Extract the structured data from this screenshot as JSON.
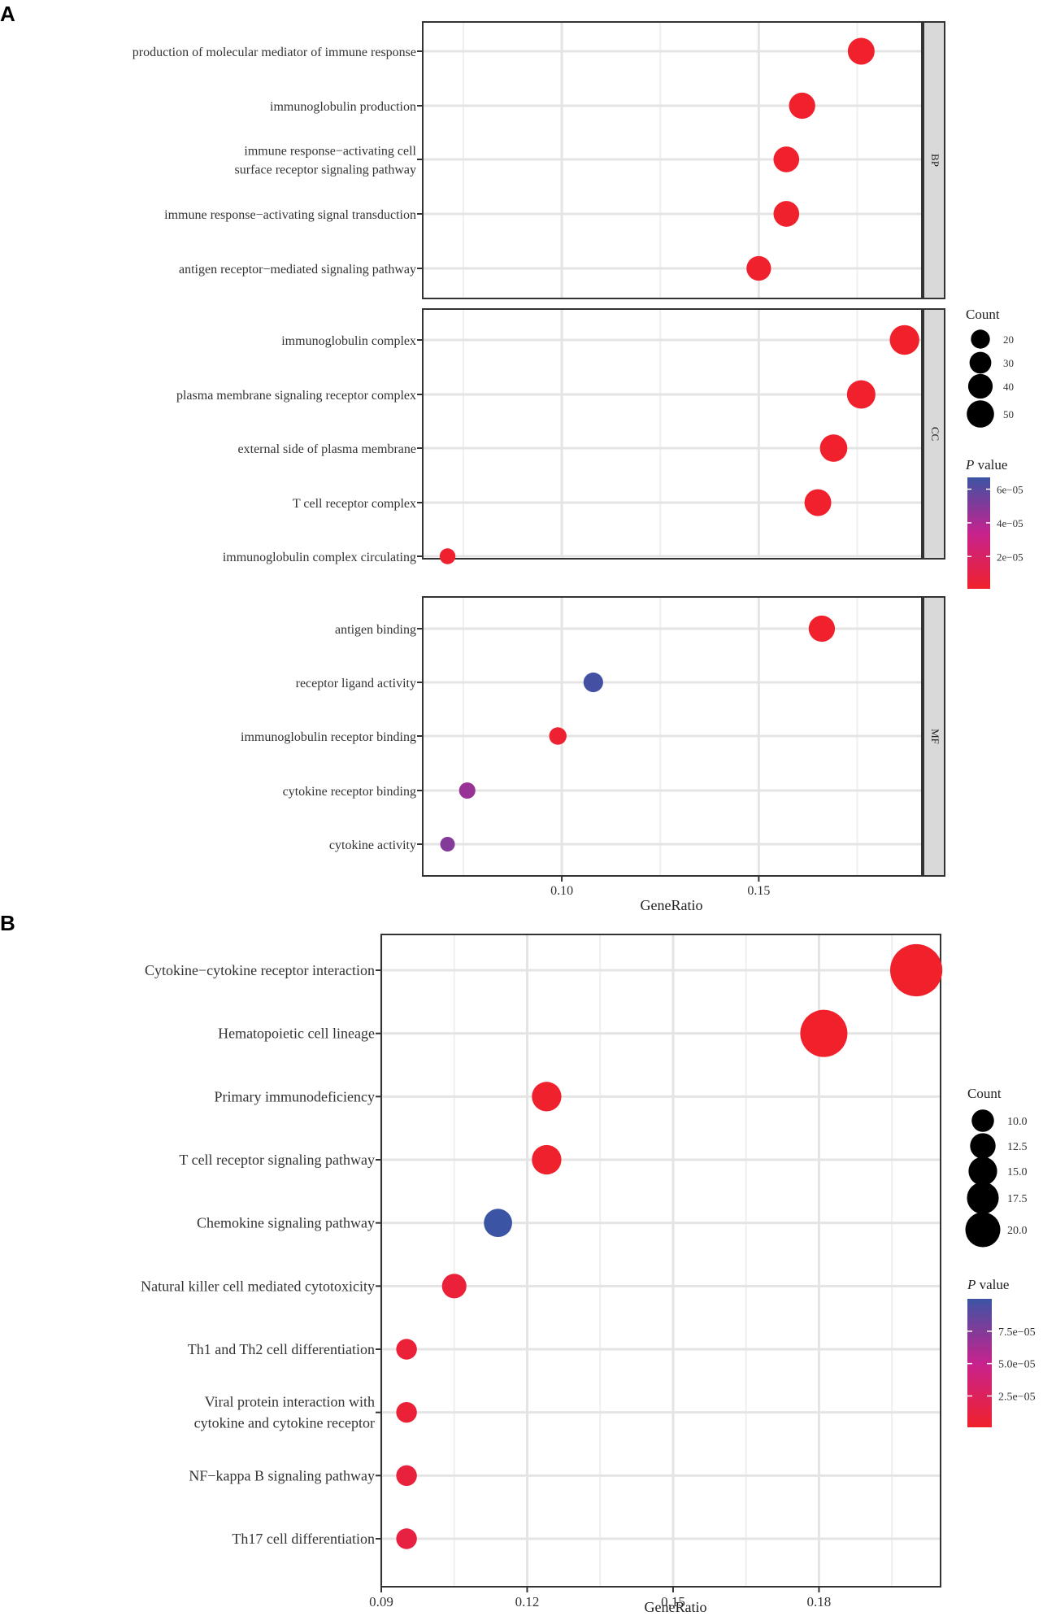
{
  "chart_data": [
    {
      "panel_label": "A",
      "type": "scatter",
      "subtype": "dot-plot-faceted",
      "xlabel": "GeneRatio",
      "x_ticks": [
        "0.10",
        "0.15"
      ],
      "x_tick_values": [
        0.1,
        0.15
      ],
      "xlim": [
        0.0647,
        0.1914
      ],
      "facets": [
        {
          "name": "BP",
          "terms": [
            {
              "label": [
                "production of molecular mediator of immune response"
              ],
              "gene_ratio": 0.176,
              "count": 35,
              "p_value": 1e-06
            },
            {
              "label": [
                "immunoglobulin production"
              ],
              "gene_ratio": 0.161,
              "count": 34,
              "p_value": 1.2e-06
            },
            {
              "label": [
                "immune response−activating cell",
                "surface receptor signaling pathway"
              ],
              "gene_ratio": 0.157,
              "count": 33,
              "p_value": 1.1e-06
            },
            {
              "label": [
                "immune response−activating signal transduction"
              ],
              "gene_ratio": 0.157,
              "count": 33,
              "p_value": 1.3e-06
            },
            {
              "label": [
                "antigen receptor−mediated signaling pathway"
              ],
              "gene_ratio": 0.15,
              "count": 31,
              "p_value": 1.5e-06
            }
          ]
        },
        {
          "name": "CC",
          "terms": [
            {
              "label": [
                "immunoglobulin complex"
              ],
              "gene_ratio": 0.187,
              "count": 40,
              "p_value": 8e-07
            },
            {
              "label": [
                "plasma membrane signaling receptor complex"
              ],
              "gene_ratio": 0.176,
              "count": 38,
              "p_value": 1e-06
            },
            {
              "label": [
                "external side of plasma membrane"
              ],
              "gene_ratio": 0.169,
              "count": 36,
              "p_value": 1.2e-06
            },
            {
              "label": [
                "T cell receptor complex"
              ],
              "gene_ratio": 0.165,
              "count": 35,
              "p_value": 1.1e-06
            },
            {
              "label": [
                "immunoglobulin complex circulating"
              ],
              "gene_ratio": 0.071,
              "count": 15,
              "p_value": 2e-06
            }
          ]
        },
        {
          "name": "MF",
          "terms": [
            {
              "label": [
                "antigen binding"
              ],
              "gene_ratio": 0.166,
              "count": 34,
              "p_value": 1.2e-06
            },
            {
              "label": [
                "receptor ligand activity"
              ],
              "gene_ratio": 0.108,
              "count": 22,
              "p_value": 6.5e-05
            },
            {
              "label": [
                "immunoglobulin receptor binding"
              ],
              "gene_ratio": 0.099,
              "count": 18,
              "p_value": 3e-06
            },
            {
              "label": [
                "cytokine receptor binding"
              ],
              "gene_ratio": 0.076,
              "count": 16,
              "p_value": 4.5e-05
            },
            {
              "label": [
                "cytokine activity"
              ],
              "gene_ratio": 0.071,
              "count": 13,
              "p_value": 5e-05
            }
          ]
        }
      ],
      "size_legend": {
        "title": "Count",
        "breaks": [
          "20",
          "30",
          "40",
          "50"
        ],
        "break_values": [
          20,
          30,
          40,
          50
        ]
      },
      "color_legend": {
        "title_italic": "P",
        "title_rest": " value",
        "breaks": [
          "6e−05",
          "4e−05",
          "2e−05"
        ],
        "break_values": [
          6e-05,
          4e-05,
          2e-05
        ],
        "range": [
          8e-07,
          6.7e-05
        ],
        "low_color": "#f0212b",
        "mid_color": "#c7228e",
        "high_color": "#3c54a4"
      }
    },
    {
      "panel_label": "B",
      "type": "scatter",
      "subtype": "dot-plot",
      "xlabel": "GeneRatio",
      "x_ticks": [
        "0.09",
        "0.12",
        "0.15",
        "0.18"
      ],
      "x_tick_values": [
        0.09,
        0.12,
        0.15,
        0.18
      ],
      "xlim": [
        0.09,
        0.205
      ],
      "terms": [
        {
          "label": [
            "Cytokine−cytokine receptor interaction"
          ],
          "gene_ratio": 0.2,
          "count": 22,
          "p_value": 8e-07
        },
        {
          "label": [
            "Hematopoietic cell lineage"
          ],
          "gene_ratio": 0.181,
          "count": 20,
          "p_value": 9e-07
        },
        {
          "label": [
            "Primary immunodeficiency"
          ],
          "gene_ratio": 0.124,
          "count": 13,
          "p_value": 1.5e-06
        },
        {
          "label": [
            "T cell receptor signaling pathway"
          ],
          "gene_ratio": 0.124,
          "count": 13,
          "p_value": 2e-06
        },
        {
          "label": [
            "Chemokine signaling pathway"
          ],
          "gene_ratio": 0.114,
          "count": 12.5,
          "p_value": 0.0001
        },
        {
          "label": [
            "Natural killer cell mediated cytotoxicity"
          ],
          "gene_ratio": 0.105,
          "count": 11,
          "p_value": 8e-06
        },
        {
          "label": [
            "Th1 and Th2 cell differentiation"
          ],
          "gene_ratio": 0.0952,
          "count": 9.5,
          "p_value": 7e-06
        },
        {
          "label": [
            "Viral protein interaction with",
            "cytokine and cytokine receptor"
          ],
          "gene_ratio": 0.0952,
          "count": 9.5,
          "p_value": 7e-06
        },
        {
          "label": [
            "NF−kappa B signaling pathway"
          ],
          "gene_ratio": 0.0952,
          "count": 9.5,
          "p_value": 1e-05
        },
        {
          "label": [
            "Th17 cell differentiation"
          ],
          "gene_ratio": 0.0952,
          "count": 9.5,
          "p_value": 1.2e-05
        }
      ],
      "size_legend": {
        "title": "Count",
        "breaks": [
          "10.0",
          "12.5",
          "15.0",
          "17.5",
          "20.0"
        ],
        "break_values": [
          10,
          12.5,
          15,
          17.5,
          20
        ]
      },
      "color_legend": {
        "title_italic": "P",
        "title_rest": " value",
        "breaks": [
          "7.5e−05",
          "5.0e−05",
          "2.5e−05"
        ],
        "break_values": [
          7.5e-05,
          5e-05,
          2.5e-05
        ],
        "range": [
          8e-07,
          0.0001
        ],
        "low_color": "#f0212b",
        "mid_color": "#c7228e",
        "high_color": "#3c54a4"
      }
    }
  ]
}
